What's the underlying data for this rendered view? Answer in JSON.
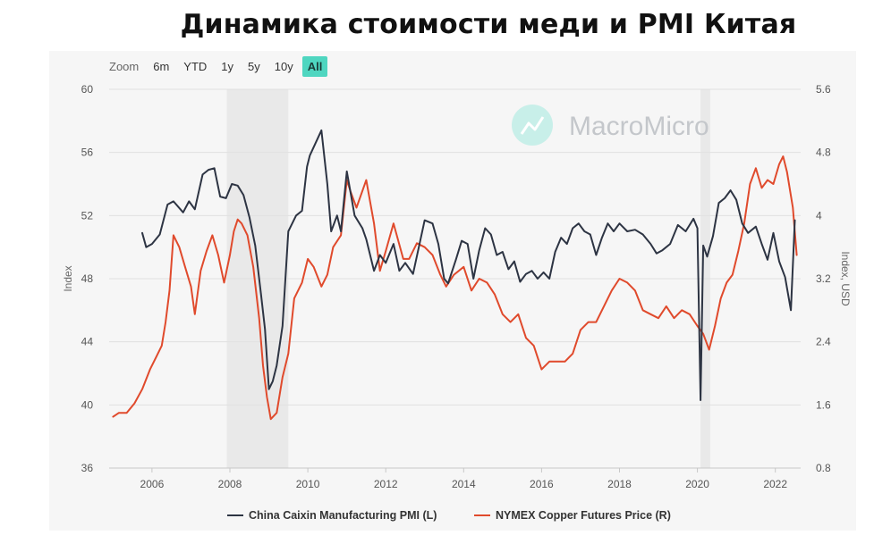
{
  "title": "Динамика стоимости меди и PMI Китая",
  "zoom": {
    "label": "Zoom",
    "buttons": [
      "6m",
      "YTD",
      "1y",
      "5y",
      "10y",
      "All"
    ],
    "active": "All"
  },
  "watermark": "MacroMicro",
  "colors": {
    "pmi": "#2d3443",
    "copper": "#e04a2c",
    "recession": "#e9e9e9",
    "accent": "#4fd6c0"
  },
  "chart_data": {
    "type": "line",
    "title": "",
    "xlabel": "",
    "ylabel_left": "Index",
    "ylabel_right": "Index, USD",
    "x_ticks": [
      "2006",
      "2008",
      "2010",
      "2012",
      "2014",
      "2016",
      "2018",
      "2020",
      "2022"
    ],
    "yleft_ticks": [
      "36",
      "40",
      "44",
      "48",
      "52",
      "56",
      "60"
    ],
    "yright_ticks": [
      "0.8",
      "1.6",
      "2.4",
      "3.2",
      "4",
      "4.8",
      "5.6"
    ],
    "xlim": [
      2004.9,
      2022.65
    ],
    "ylim_left": [
      36,
      60
    ],
    "ylim_right": [
      0.8,
      5.6
    ],
    "grid": true,
    "legend_position": "bottom",
    "recession_bands": [
      [
        2007.92,
        2009.5
      ],
      [
        2020.08,
        2020.33
      ]
    ],
    "series": [
      {
        "name": "China Caixin Manufacturing PMI (L)",
        "axis": "left",
        "x": [
          2005.75,
          2005.85,
          2006.0,
          2006.2,
          2006.4,
          2006.55,
          2006.8,
          2006.95,
          2007.1,
          2007.3,
          2007.45,
          2007.6,
          2007.75,
          2007.9,
          2008.05,
          2008.2,
          2008.35,
          2008.5,
          2008.65,
          2008.8,
          2008.9,
          2009.0,
          2009.1,
          2009.2,
          2009.35,
          2009.5,
          2009.7,
          2009.85,
          2009.98,
          2010.05,
          2010.2,
          2010.35,
          2010.5,
          2010.6,
          2010.75,
          2010.85,
          2011.0,
          2011.2,
          2011.4,
          2011.5,
          2011.7,
          2011.85,
          2012.0,
          2012.2,
          2012.35,
          2012.5,
          2012.7,
          2012.85,
          2013.0,
          2013.2,
          2013.35,
          2013.5,
          2013.6,
          2013.8,
          2013.95,
          2014.1,
          2014.25,
          2014.4,
          2014.55,
          2014.7,
          2014.85,
          2015.0,
          2015.15,
          2015.3,
          2015.45,
          2015.6,
          2015.75,
          2015.9,
          2016.05,
          2016.2,
          2016.35,
          2016.5,
          2016.65,
          2016.8,
          2016.95,
          2017.1,
          2017.25,
          2017.4,
          2017.55,
          2017.7,
          2017.85,
          2018.0,
          2018.2,
          2018.4,
          2018.6,
          2018.8,
          2018.95,
          2019.1,
          2019.3,
          2019.5,
          2019.7,
          2019.9,
          2020.0,
          2020.08,
          2020.15,
          2020.25,
          2020.4,
          2020.55,
          2020.7,
          2020.85,
          2021.0,
          2021.15,
          2021.3,
          2021.5,
          2021.65,
          2021.8,
          2021.95,
          2022.1,
          2022.25,
          2022.4,
          2022.5
        ],
        "values": [
          50.9,
          50.0,
          50.2,
          50.8,
          52.7,
          52.9,
          52.2,
          52.9,
          52.4,
          54.6,
          54.9,
          55.0,
          53.2,
          53.1,
          54.0,
          53.9,
          53.3,
          51.9,
          50.1,
          47.0,
          44.8,
          41.0,
          41.5,
          42.5,
          45.0,
          51.0,
          52.0,
          52.3,
          55.1,
          55.8,
          56.6,
          57.4,
          54.0,
          51.0,
          52.0,
          51.0,
          54.8,
          52.0,
          51.2,
          50.5,
          48.5,
          49.5,
          49.0,
          50.2,
          48.5,
          49.0,
          48.3,
          50.0,
          51.7,
          51.5,
          50.2,
          48.0,
          47.7,
          49.2,
          50.4,
          50.2,
          48.0,
          49.8,
          51.2,
          50.8,
          49.5,
          49.7,
          48.6,
          49.1,
          47.8,
          48.3,
          48.5,
          48.0,
          48.4,
          48.0,
          49.7,
          50.6,
          50.2,
          51.2,
          51.5,
          51.0,
          50.8,
          49.5,
          50.6,
          51.5,
          51.0,
          51.5,
          51.0,
          51.1,
          50.8,
          50.2,
          49.6,
          49.8,
          50.2,
          51.4,
          51.0,
          51.8,
          51.2,
          40.3,
          50.1,
          49.4,
          50.7,
          52.8,
          53.1,
          53.6,
          53.0,
          51.5,
          50.9,
          51.3,
          50.2,
          49.2,
          50.9,
          49.1,
          48.1,
          46.0,
          51.7
        ]
      },
      {
        "name": "NYMEX Copper Futures Price (R)",
        "axis": "right",
        "x": [
          2005.0,
          2005.15,
          2005.35,
          2005.55,
          2005.75,
          2005.95,
          2006.1,
          2006.25,
          2006.35,
          2006.45,
          2006.55,
          2006.7,
          2006.85,
          2007.0,
          2007.1,
          2007.25,
          2007.4,
          2007.55,
          2007.7,
          2007.85,
          2008.0,
          2008.1,
          2008.2,
          2008.3,
          2008.45,
          2008.6,
          2008.75,
          2008.85,
          2008.95,
          2009.05,
          2009.2,
          2009.35,
          2009.5,
          2009.65,
          2009.85,
          2010.0,
          2010.15,
          2010.35,
          2010.5,
          2010.65,
          2010.85,
          2011.0,
          2011.1,
          2011.25,
          2011.5,
          2011.7,
          2011.85,
          2012.0,
          2012.2,
          2012.45,
          2012.6,
          2012.8,
          2013.0,
          2013.2,
          2013.4,
          2013.55,
          2013.75,
          2014.0,
          2014.2,
          2014.4,
          2014.6,
          2014.8,
          2015.0,
          2015.2,
          2015.4,
          2015.6,
          2015.8,
          2016.0,
          2016.2,
          2016.4,
          2016.6,
          2016.8,
          2017.0,
          2017.2,
          2017.4,
          2017.6,
          2017.8,
          2018.0,
          2018.2,
          2018.4,
          2018.6,
          2018.8,
          2019.0,
          2019.2,
          2019.4,
          2019.6,
          2019.8,
          2020.0,
          2020.15,
          2020.3,
          2020.45,
          2020.6,
          2020.75,
          2020.9,
          2021.05,
          2021.2,
          2021.35,
          2021.5,
          2021.65,
          2021.8,
          2021.95,
          2022.1,
          2022.2,
          2022.3,
          2022.45,
          2022.55
        ],
        "values": [
          1.45,
          1.5,
          1.5,
          1.62,
          1.8,
          2.05,
          2.2,
          2.35,
          2.65,
          3.05,
          3.75,
          3.6,
          3.35,
          3.1,
          2.75,
          3.3,
          3.55,
          3.75,
          3.5,
          3.15,
          3.5,
          3.8,
          3.95,
          3.9,
          3.75,
          3.35,
          2.7,
          2.1,
          1.7,
          1.42,
          1.5,
          1.95,
          2.25,
          2.95,
          3.15,
          3.45,
          3.35,
          3.1,
          3.25,
          3.6,
          3.75,
          4.45,
          4.3,
          4.1,
          4.45,
          3.9,
          3.3,
          3.55,
          3.9,
          3.45,
          3.45,
          3.65,
          3.6,
          3.5,
          3.25,
          3.1,
          3.25,
          3.35,
          3.05,
          3.2,
          3.15,
          3.0,
          2.75,
          2.65,
          2.75,
          2.45,
          2.35,
          2.05,
          2.15,
          2.15,
          2.15,
          2.25,
          2.55,
          2.65,
          2.65,
          2.85,
          3.05,
          3.2,
          3.15,
          3.05,
          2.8,
          2.75,
          2.7,
          2.85,
          2.7,
          2.8,
          2.75,
          2.6,
          2.5,
          2.3,
          2.6,
          2.95,
          3.15,
          3.25,
          3.55,
          3.9,
          4.4,
          4.6,
          4.35,
          4.45,
          4.4,
          4.65,
          4.75,
          4.55,
          4.1,
          3.5
        ]
      }
    ]
  }
}
